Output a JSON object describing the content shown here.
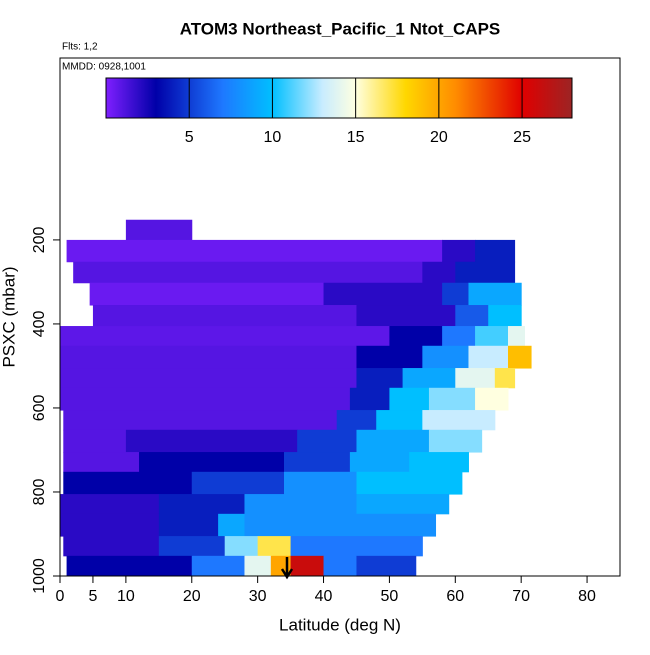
{
  "chart_data": {
    "type": "heatmap",
    "title": "ATOM3 Northeast_Pacific_1 Ntot_CAPS",
    "annotations": [
      "Flts: 1,2",
      "MMDD: 0928,1001"
    ],
    "xlabel": "Latitude (deg N)",
    "ylabel": "PSXC (mbar)",
    "xlim": [
      0,
      85
    ],
    "ylim": [
      1000,
      -233
    ],
    "xticks": [
      0,
      5,
      10,
      20,
      30,
      40,
      50,
      60,
      70,
      80
    ],
    "yticks": [
      200,
      400,
      600,
      800,
      1000
    ],
    "colorlim": [
      0,
      28
    ],
    "colorticks": [
      5,
      10,
      15,
      20,
      25
    ],
    "colorscale": [
      [
        0,
        "#7f1fff"
      ],
      [
        3,
        "#0000a8"
      ],
      [
        7,
        "#1e78ff"
      ],
      [
        10,
        "#00bfff"
      ],
      [
        13,
        "#c8ecff"
      ],
      [
        15,
        "#ffffe0"
      ],
      [
        18,
        "#ffd700"
      ],
      [
        21,
        "#ff8c00"
      ],
      [
        25,
        "#e00000"
      ],
      [
        28,
        "#9c2424"
      ]
    ],
    "rows": [
      {
        "p": [
          152,
          200
        ],
        "segments": [
          [
            10,
            20,
            1
          ]
        ]
      },
      {
        "p": [
          200,
          252
        ],
        "segments": [
          [
            1,
            58,
            0.5
          ],
          [
            58,
            63,
            2
          ],
          [
            63,
            69,
            4
          ]
        ]
      },
      {
        "p": [
          252,
          302
        ],
        "segments": [
          [
            2,
            55,
            1
          ],
          [
            55,
            60,
            2
          ],
          [
            60,
            69,
            4
          ]
        ]
      },
      {
        "p": [
          302,
          355
        ],
        "segments": [
          [
            4.5,
            40,
            0.5
          ],
          [
            40,
            58,
            2
          ],
          [
            58,
            62,
            5
          ],
          [
            62,
            70,
            9
          ]
        ]
      },
      {
        "p": [
          355,
          405
        ],
        "segments": [
          [
            5,
            45,
            1
          ],
          [
            45,
            60,
            2
          ],
          [
            60,
            65,
            6
          ],
          [
            65,
            70,
            10
          ]
        ]
      },
      {
        "p": [
          405,
          452
        ],
        "segments": [
          [
            0,
            50,
            0.8
          ],
          [
            50,
            58,
            3
          ],
          [
            58,
            63,
            7
          ],
          [
            63,
            68,
            11
          ],
          [
            68,
            70.5,
            14
          ]
        ]
      },
      {
        "p": [
          452,
          505
        ],
        "segments": [
          [
            0,
            45,
            1
          ],
          [
            45,
            55,
            3
          ],
          [
            55,
            62,
            8
          ],
          [
            62,
            68,
            13
          ],
          [
            68,
            71.5,
            19
          ]
        ]
      },
      {
        "p": [
          505,
          552
        ],
        "segments": [
          [
            0,
            45,
            1
          ],
          [
            45,
            52,
            4
          ],
          [
            52,
            60,
            9
          ],
          [
            60,
            66,
            14
          ],
          [
            66,
            69,
            17
          ]
        ]
      },
      {
        "p": [
          552,
          605
        ],
        "segments": [
          [
            0,
            44,
            1
          ],
          [
            44,
            50,
            4
          ],
          [
            50,
            56,
            10
          ],
          [
            56,
            63,
            12
          ],
          [
            63,
            68,
            15
          ]
        ]
      },
      {
        "p": [
          605,
          652
        ],
        "segments": [
          [
            0.5,
            42,
            1
          ],
          [
            42,
            48,
            5
          ],
          [
            48,
            55,
            10
          ],
          [
            55,
            66,
            13
          ]
        ]
      },
      {
        "p": [
          652,
          705
        ],
        "segments": [
          [
            0.5,
            10,
            1
          ],
          [
            10,
            36,
            2
          ],
          [
            36,
            45,
            5
          ],
          [
            45,
            56,
            9
          ],
          [
            56,
            64,
            12
          ]
        ]
      },
      {
        "p": [
          705,
          752
        ],
        "segments": [
          [
            0.5,
            12,
            1
          ],
          [
            12,
            34,
            3
          ],
          [
            34,
            44,
            5
          ],
          [
            44,
            53,
            9
          ],
          [
            53,
            62,
            10
          ]
        ]
      },
      {
        "p": [
          752,
          805
        ],
        "segments": [
          [
            0.5,
            20,
            3
          ],
          [
            20,
            34,
            5
          ],
          [
            34,
            45,
            8
          ],
          [
            45,
            61,
            10
          ]
        ]
      },
      {
        "p": [
          805,
          852
        ],
        "segments": [
          [
            0,
            15,
            2
          ],
          [
            15,
            28,
            4
          ],
          [
            28,
            45,
            8
          ],
          [
            45,
            59,
            9
          ]
        ]
      },
      {
        "p": [
          852,
          905
        ],
        "segments": [
          [
            0,
            15,
            2
          ],
          [
            15,
            24,
            4
          ],
          [
            24,
            28,
            9
          ],
          [
            28,
            57,
            8
          ]
        ]
      },
      {
        "p": [
          905,
          952
        ],
        "segments": [
          [
            0.5,
            15,
            2
          ],
          [
            15,
            25,
            5
          ],
          [
            25,
            30,
            12
          ],
          [
            30,
            35,
            17
          ],
          [
            35,
            55,
            7
          ]
        ]
      },
      {
        "p": [
          952,
          1000
        ],
        "segments": [
          [
            1,
            20,
            3
          ],
          [
            20,
            28,
            7
          ],
          [
            28,
            32,
            14
          ],
          [
            32,
            35,
            20
          ],
          [
            35,
            40,
            26
          ],
          [
            40,
            45,
            7
          ],
          [
            45,
            54,
            5
          ]
        ]
      }
    ]
  }
}
